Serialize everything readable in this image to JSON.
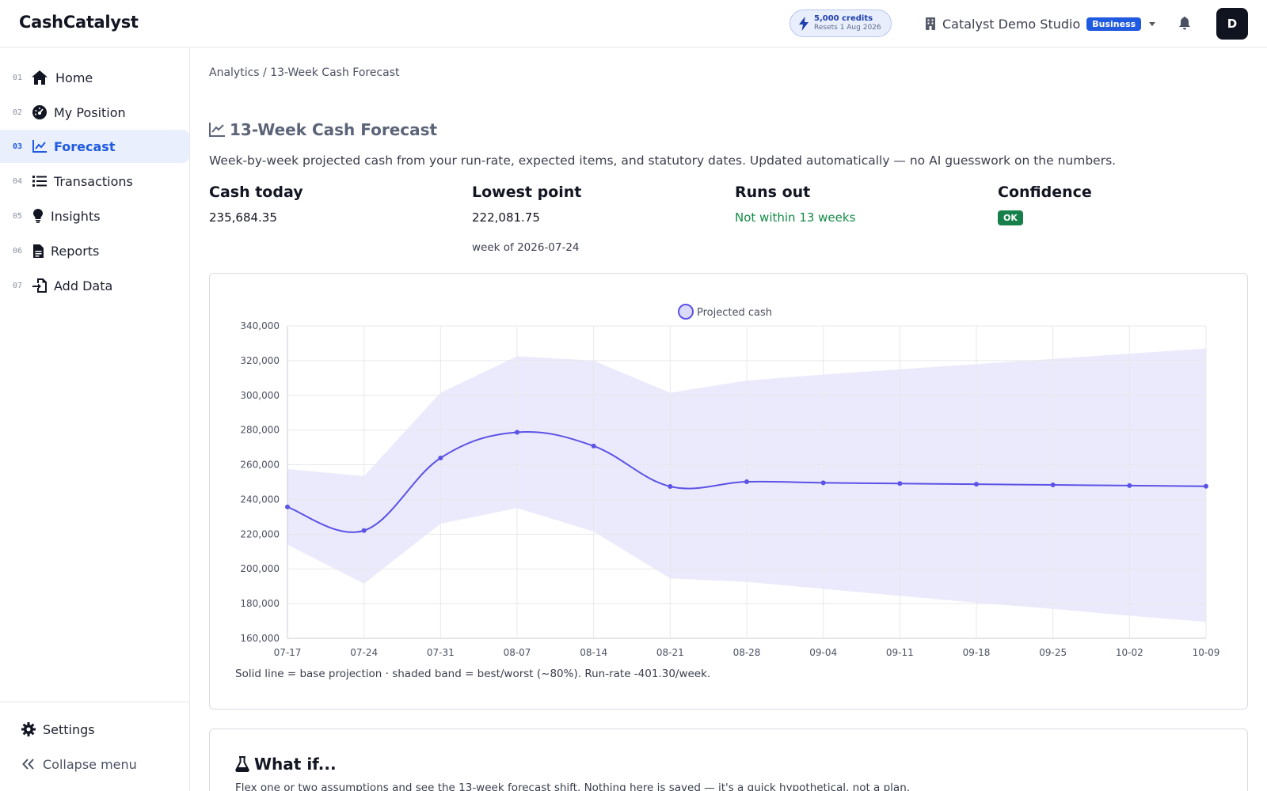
{
  "header": {
    "brand": "CashCatalyst",
    "credits": {
      "amount": "5,000 credits",
      "reset": "Resets 1 Aug 2026",
      "icon": "bolt-icon"
    },
    "org": {
      "name": "Catalyst Demo Studio",
      "plan": "Business",
      "icon": "building-icon"
    },
    "notifications_icon": "bell-icon",
    "avatar_initial": "D"
  },
  "sidebar": {
    "items": [
      {
        "num": "01",
        "label": "Home",
        "icon": "home-icon",
        "active": false
      },
      {
        "num": "02",
        "label": "My Position",
        "icon": "gauge-icon",
        "active": false
      },
      {
        "num": "03",
        "label": "Forecast",
        "icon": "chart-line-icon",
        "active": true
      },
      {
        "num": "04",
        "label": "Transactions",
        "icon": "list-icon",
        "active": false
      },
      {
        "num": "05",
        "label": "Insights",
        "icon": "lightbulb-icon",
        "active": false
      },
      {
        "num": "06",
        "label": "Reports",
        "icon": "document-icon",
        "active": false
      },
      {
        "num": "07",
        "label": "Add Data",
        "icon": "import-icon",
        "active": false
      }
    ],
    "settings_label": "Settings",
    "collapse_label": "Collapse menu"
  },
  "breadcrumb": "Analytics / 13-Week Cash Forecast",
  "page": {
    "title": "13-Week Cash Forecast",
    "subtitle": "Week-by-week projected cash from your run-rate, expected items, and statutory dates. Updated automatically — no AI guesswork on the numbers."
  },
  "stats": {
    "cash_today": {
      "label": "Cash today",
      "value": "235,684.35"
    },
    "lowest_point": {
      "label": "Lowest point",
      "value": "222,081.75",
      "sub": "week of 2026-07-24"
    },
    "runs_out": {
      "label": "Runs out",
      "value": "Not within 13 weeks"
    },
    "confidence": {
      "label": "Confidence",
      "value": "OK"
    }
  },
  "chart_data": {
    "type": "line",
    "categories": [
      "07-17",
      "07-24",
      "07-31",
      "08-07",
      "08-14",
      "08-21",
      "08-28",
      "09-04",
      "09-11",
      "09-18",
      "09-25",
      "10-02",
      "10-09"
    ],
    "series": [
      {
        "name": "Projected cash",
        "values": [
          235684,
          222082,
          263900,
          278700,
          270800,
          247500,
          250200,
          249600,
          249200,
          248800,
          248400,
          248000,
          247600
        ]
      }
    ],
    "band": {
      "upper": [
        257500,
        253500,
        301500,
        322500,
        320000,
        301500,
        308500,
        312000,
        315000,
        318000,
        321000,
        324000,
        327000
      ],
      "lower": [
        214000,
        191500,
        226000,
        235000,
        221500,
        194500,
        192500,
        188500,
        184500,
        180500,
        177000,
        173000,
        169500
      ]
    },
    "ylim": [
      160000,
      340000
    ],
    "yticks": [
      "340,000",
      "320,000",
      "300,000",
      "280,000",
      "260,000",
      "240,000",
      "220,000",
      "200,000",
      "180,000",
      "160,000"
    ],
    "legend_position": "top",
    "grid": true,
    "colors": {
      "line": "#5b52e6",
      "band": "#e9e8fc",
      "grid": "#e7e8ec"
    },
    "note": "Solid line = base projection · shaded band = best/worst (~80%). Run-rate -401.30/week."
  },
  "whatif": {
    "title": "What if...",
    "icon": "flask-icon",
    "description": "Flex one or two assumptions and see the 13-week forecast shift. Nothing here is saved — it's a quick hypothetical, not a plan."
  }
}
